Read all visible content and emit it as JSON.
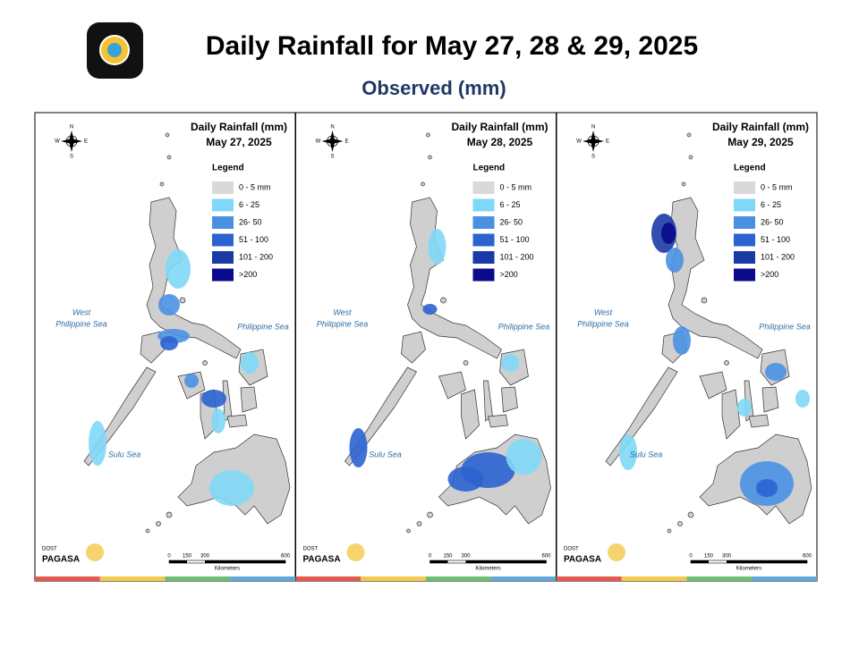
{
  "header": {
    "title": "Daily Rainfall for May 27, 28 & 29, 2025",
    "subtitle": "Observed (mm)"
  },
  "panels": [
    {
      "title": "Daily Rainfall (mm)",
      "date": "May 27, 2025"
    },
    {
      "title": "Daily Rainfall (mm)",
      "date": "May 28, 2025"
    },
    {
      "title": "Daily Rainfall (mm)",
      "date": "May 29, 2025"
    }
  ],
  "legend": {
    "title": "Legend",
    "items": [
      {
        "label": "0 - 5 mm",
        "color": "#d9d9d9"
      },
      {
        "label": "6 - 25",
        "color": "#7fd8f7"
      },
      {
        "label": "26- 50",
        "color": "#4a90e2"
      },
      {
        "label": "51 - 100",
        "color": "#2b63d1"
      },
      {
        "label": "101 - 200",
        "color": "#1a3aa6"
      },
      {
        "label": ">200",
        "color": "#0a0a8a"
      }
    ]
  },
  "seas": {
    "west": [
      "West",
      "Philippine Sea"
    ],
    "east": "Philippine Sea",
    "south": "Sulu Sea"
  },
  "compass": {
    "n": "N",
    "e": "E",
    "s": "S",
    "w": "W"
  },
  "scale": {
    "ticks": [
      "0",
      "150",
      "300",
      "600"
    ],
    "unit": "Kilometers"
  },
  "logo": {
    "line1": "DOST",
    "line2": "PAGASA"
  }
}
